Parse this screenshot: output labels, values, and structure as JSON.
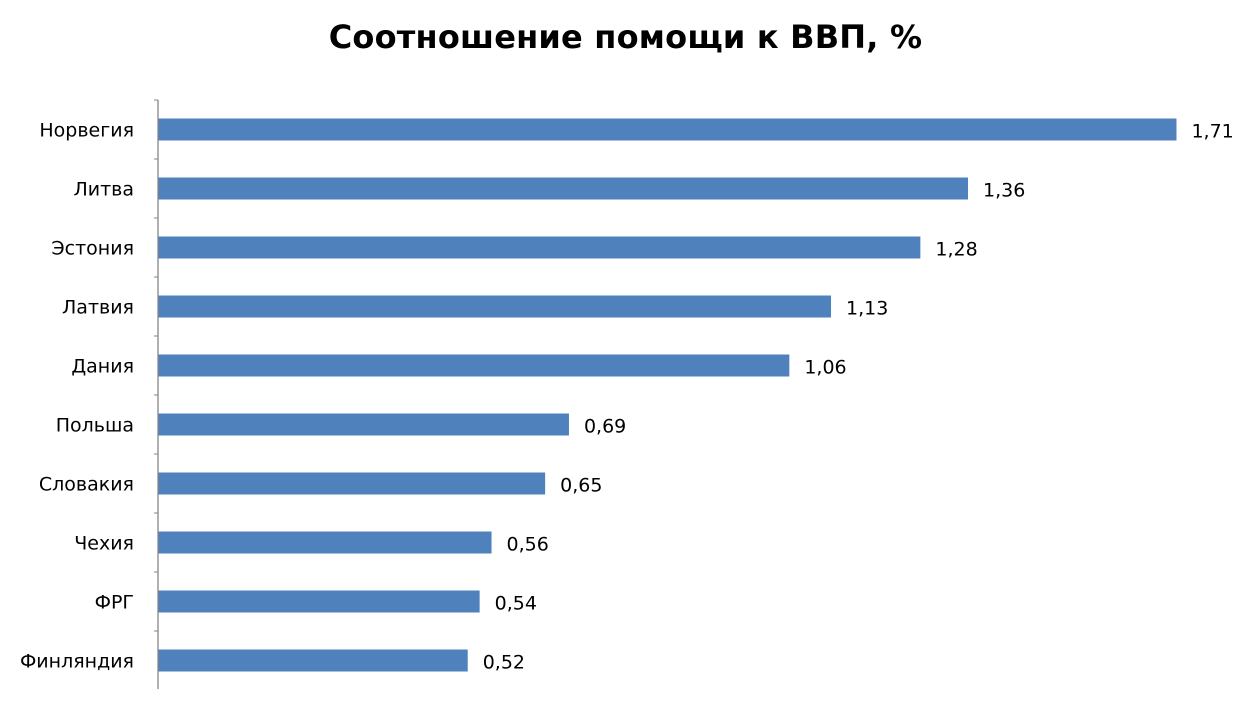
{
  "chart_data": {
    "type": "bar",
    "orientation": "horizontal",
    "title": "Соотношение помощи к ВВП, %",
    "categories": [
      "Норвегия",
      "Литва",
      "Эстония",
      "Латвия",
      "Дания",
      "Польша",
      "Словакия",
      "Чехия",
      "ФРГ",
      "Финляндия"
    ],
    "values": [
      1.71,
      1.36,
      1.28,
      1.13,
      1.06,
      0.69,
      0.65,
      0.56,
      0.54,
      0.52
    ],
    "data_labels": [
      "1,71",
      "1,36",
      "1,28",
      "1,13",
      "1,06",
      "0,69",
      "0,65",
      "0,56",
      "0,54",
      "0,52"
    ],
    "xlabel": "",
    "ylabel": "",
    "xlim": [
      0,
      1.8
    ],
    "grid": false,
    "legend": "none",
    "bar_color": "#4F81BD",
    "axis_color": "#868686"
  }
}
